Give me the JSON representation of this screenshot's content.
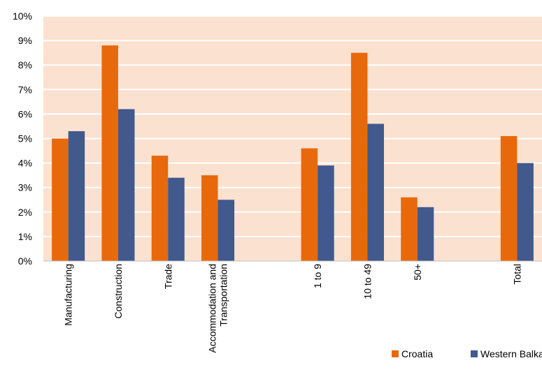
{
  "chart_data": {
    "type": "bar",
    "categories": [
      "Manufacturing",
      "Construction",
      "Trade",
      "Accommodation and Transportation",
      "",
      "1 to 9",
      "10 to 49",
      "50+",
      "",
      "Total"
    ],
    "category_lines": [
      [
        "Manufacturing"
      ],
      [
        "Construction"
      ],
      [
        "Trade"
      ],
      [
        "Accommodation and",
        "Transportation"
      ],
      [],
      [
        "1 to 9"
      ],
      [
        "10 to 49"
      ],
      [
        "50+"
      ],
      [],
      [
        "Total"
      ]
    ],
    "series": [
      {
        "name": "Croatia",
        "color": "#e8690b",
        "values": [
          5.0,
          8.8,
          4.3,
          3.5,
          null,
          4.6,
          8.5,
          2.6,
          null,
          5.1
        ]
      },
      {
        "name": "Western Balkans",
        "color": "#41598d",
        "values": [
          5.3,
          6.2,
          3.4,
          2.5,
          null,
          3.9,
          5.6,
          2.2,
          null,
          4.0
        ]
      }
    ],
    "ylim": [
      0,
      10
    ],
    "yticks": [
      "0%",
      "1%",
      "2%",
      "3%",
      "4%",
      "5%",
      "6%",
      "7%",
      "8%",
      "9%",
      "10%"
    ],
    "grid": true,
    "plot_background": "#fbe1cf",
    "legend": "bottom-right"
  }
}
